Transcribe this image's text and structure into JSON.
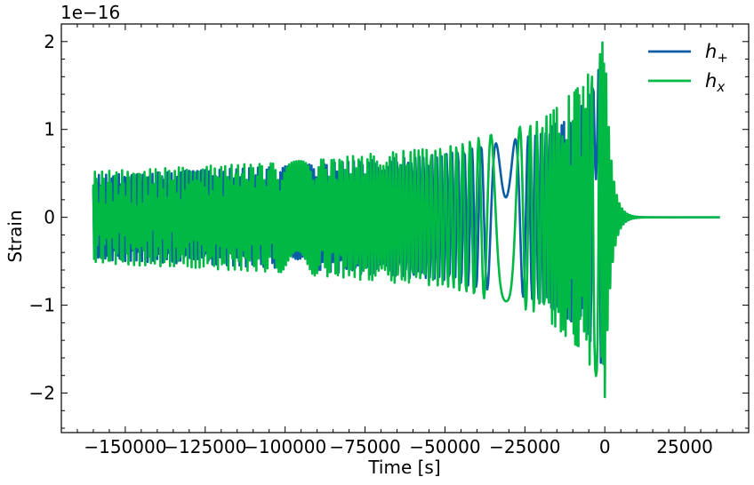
{
  "chart_data": {
    "type": "line",
    "title": "",
    "xlabel": "Time [s]",
    "ylabel": "Strain",
    "y_offset_label": "1e−16",
    "xlim": [
      -170000,
      45000
    ],
    "ylim": [
      -2.45,
      2.2
    ],
    "x_ticks": [
      -150000,
      -125000,
      -100000,
      -75000,
      -50000,
      -25000,
      0,
      25000
    ],
    "x_tick_labels": [
      "−150000",
      "−125000",
      "−100000",
      "−75000",
      "−50000",
      "−25000",
      "0",
      "25000"
    ],
    "y_ticks": [
      -2,
      -1,
      0,
      1,
      2
    ],
    "y_tick_labels": [
      "−2",
      "−1",
      "0",
      "1",
      "2"
    ],
    "grid": false,
    "legend_position": "top-right",
    "colors": {
      "h_plus": "#0C5DA5",
      "h_cross": "#00B945"
    },
    "series": [
      {
        "name": "h",
        "name_sub": "+",
        "color": "#0C5DA5",
        "waveform": "chirp",
        "t_start": -160000,
        "t_merger": 0,
        "t_end": 36000,
        "phase_offset": 0.52,
        "envelope": [
          [
            -160000,
            0.48
          ],
          [
            -100000,
            0.58
          ],
          [
            -50000,
            0.72
          ],
          [
            -20000,
            0.95
          ],
          [
            -6000,
            1.3
          ],
          [
            -1500,
            1.75
          ],
          [
            0,
            1.8
          ]
        ],
        "ringdown_timescale": 1800
      },
      {
        "name": "h",
        "name_sub": "x",
        "color": "#00B945",
        "waveform": "chirp",
        "t_start": -160000,
        "t_merger": 0,
        "t_end": 36000,
        "phase_offset": -1.05,
        "envelope": [
          [
            -160000,
            0.52
          ],
          [
            -100000,
            0.63
          ],
          [
            -50000,
            0.8
          ],
          [
            -20000,
            1.1
          ],
          [
            -6000,
            1.55
          ],
          [
            -1500,
            2.0
          ],
          [
            0,
            2.05
          ]
        ],
        "ringdown_timescale": 1800
      }
    ]
  }
}
